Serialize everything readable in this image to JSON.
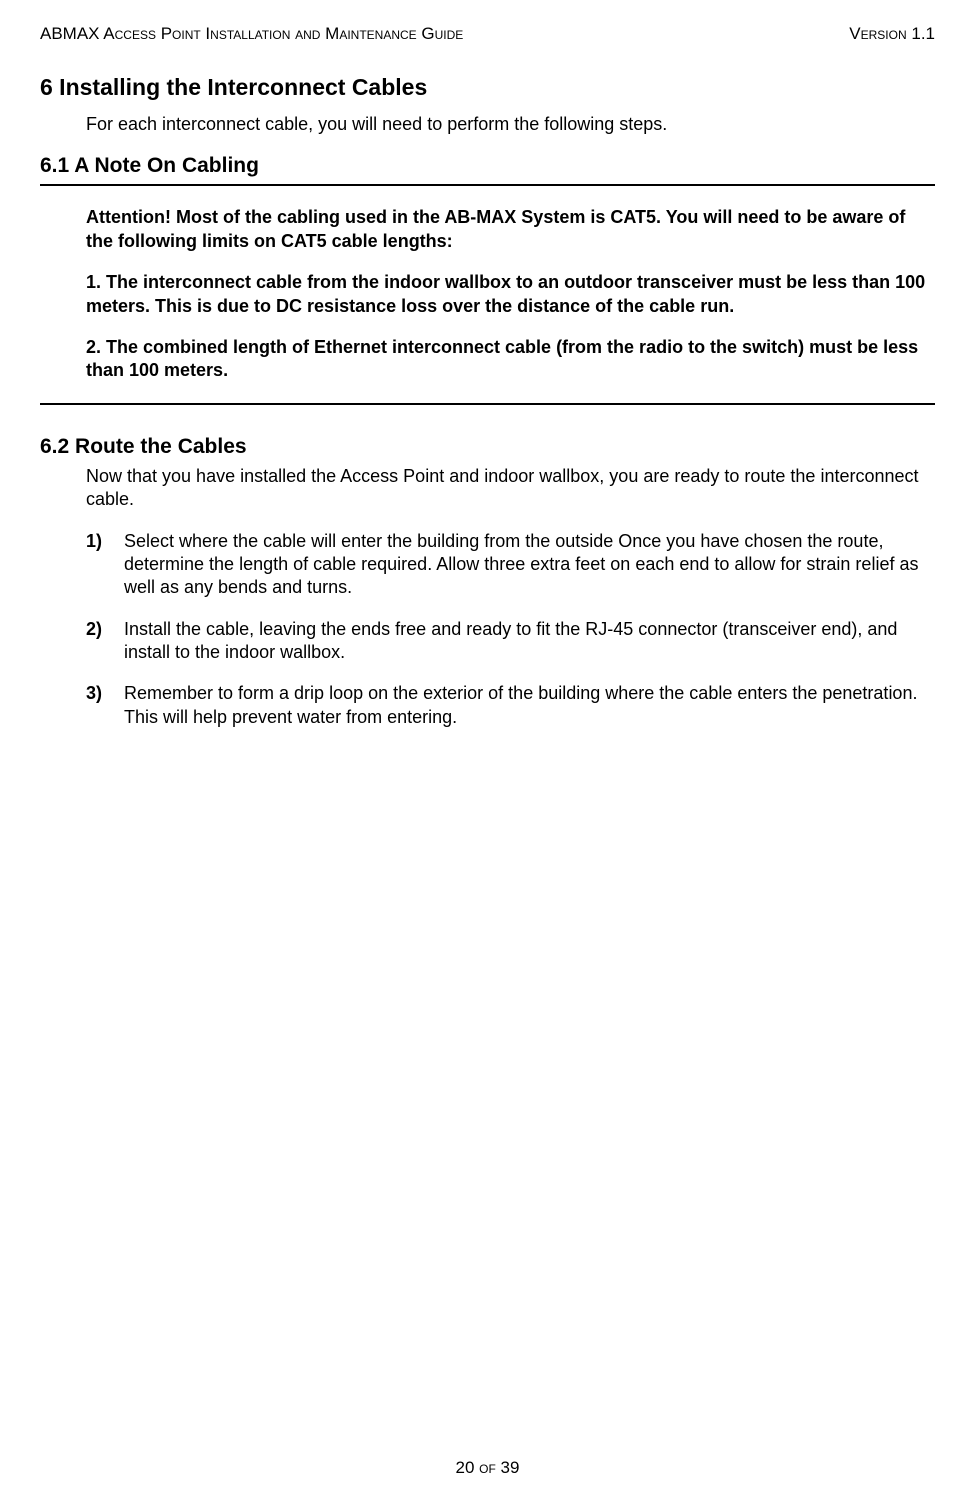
{
  "header": {
    "left": "ABMAX Access Point Installation and Maintenance Guide",
    "right": "Version 1.1"
  },
  "section6": {
    "title": "6 Installing the Interconnect Cables",
    "intro": "For each interconnect cable, you will need to perform the following steps."
  },
  "section61": {
    "title": "6.1  A Note On Cabling",
    "attention1": "Attention!  Most of the cabling used in the AB-MAX System is CAT5.  You will need to be aware of the following limits on CAT5 cable lengths:",
    "attention2": "1. The interconnect cable from the indoor wallbox to an outdoor transceiver must be less than 100 meters.  This is due to DC resistance loss over the distance of the cable run.",
    "attention3": "2. The combined length of Ethernet interconnect cable (from the radio to the switch) must be less than 100 meters."
  },
  "section62": {
    "title": "6.2 Route the Cables",
    "intro": "Now that you have installed the Access Point and indoor wallbox, you are ready to route the interconnect cable.",
    "steps": [
      {
        "marker": "1)",
        "text": "Select where the cable will enter the building from the outside Once you have chosen the route, determine the length of cable required.  Allow three extra feet on each end to allow for strain relief as well as any bends and turns."
      },
      {
        "marker": "2)",
        "text": "Install the cable, leaving the ends free and ready to fit the RJ-45 connector (transceiver end), and install to the indoor wallbox."
      },
      {
        "marker": "3)",
        "text": "Remember to form a drip loop on the exterior of the building where the cable enters the penetration.  This will help prevent water from entering."
      }
    ]
  },
  "footer": {
    "page": "20 of 39"
  }
}
